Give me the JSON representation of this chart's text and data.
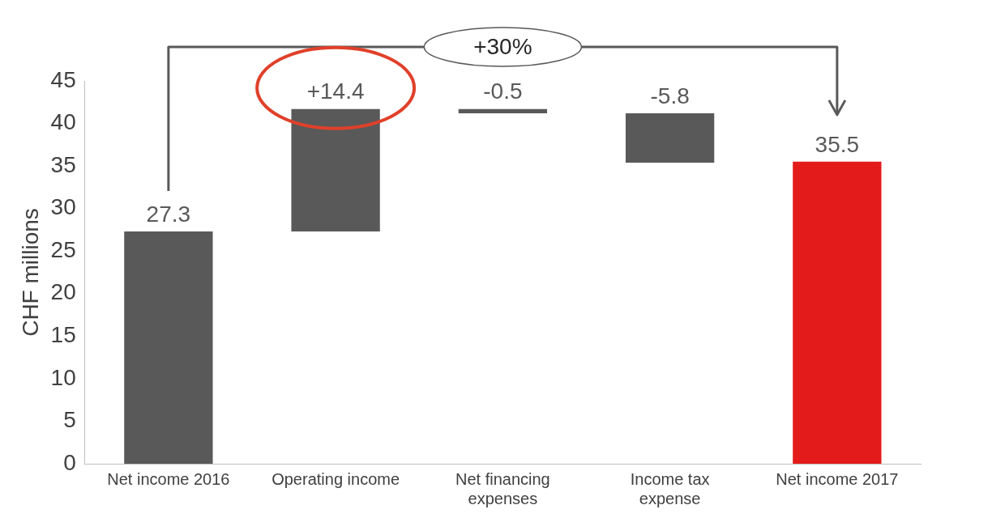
{
  "chart_data": {
    "type": "bar",
    "ylabel": "CHF millions",
    "categories": [
      "Net income 2016",
      "Operating income",
      "Net financing expenses",
      "Income tax expense",
      "Net income 2017"
    ],
    "values": [
      27.3,
      14.4,
      -0.5,
      -5.8,
      35.5
    ],
    "base": [
      0,
      27.3,
      41.7,
      41.2,
      0
    ],
    "colors": [
      "#595959",
      "#595959",
      "#595959",
      "#595959",
      "#e31b1b"
    ],
    "value_labels": [
      "27.3",
      "+14.4",
      "-0.5",
      "-5.8",
      "35.5"
    ],
    "ylim": [
      0,
      45
    ],
    "yticks": [
      0,
      5,
      10,
      15,
      20,
      25,
      30,
      35,
      40,
      45
    ],
    "grid": false,
    "legend": false,
    "annotations": [
      "+30%"
    ]
  }
}
